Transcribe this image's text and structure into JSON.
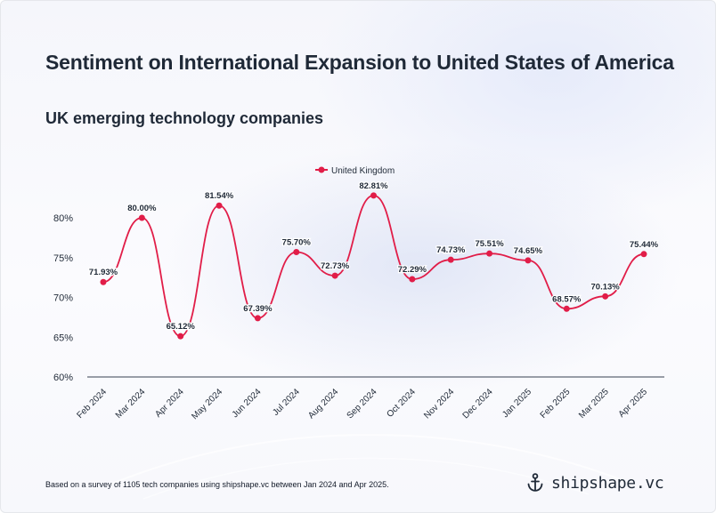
{
  "title": "Sentiment on International Expansion to United States of America",
  "subtitle": "UK emerging technology companies",
  "footnote": "Based on a survey of 1105 tech companies using shipshape.vc between Jan 2024 and Apr 2025.",
  "brand": {
    "name": "shipshape.vc",
    "icon": "anchor-icon"
  },
  "colors": {
    "series": "#e11d48",
    "axis": "#374151",
    "text": "#1f2937"
  },
  "chart_data": {
    "type": "line",
    "title": "Sentiment on International Expansion to United States of America",
    "subtitle": "UK emerging technology companies",
    "categories": [
      "Feb 2024",
      "Mar 2024",
      "Apr 2024",
      "May 2024",
      "Jun 2024",
      "Jul 2024",
      "Aug 2024",
      "Sep 2024",
      "Oct 2024",
      "Nov 2024",
      "Dec 2024",
      "Jan 2025",
      "Feb 2025",
      "Mar 2025",
      "Apr 2025"
    ],
    "series": [
      {
        "name": "United Kingdom",
        "values": [
          71.93,
          80.0,
          65.12,
          81.54,
          67.39,
          75.7,
          72.73,
          82.81,
          72.29,
          74.73,
          75.51,
          74.65,
          68.57,
          70.13,
          75.44
        ],
        "labels": [
          "71.93%",
          "80.00%",
          "65.12%",
          "81.54%",
          "67.39%",
          "75.70%",
          "72.73%",
          "82.81%",
          "72.29%",
          "74.73%",
          "75.51%",
          "74.65%",
          "68.57%",
          "70.13%",
          "75.44%"
        ]
      }
    ],
    "yticks": [
      {
        "value": 60,
        "label": "60%"
      },
      {
        "value": 65,
        "label": "65%"
      },
      {
        "value": 70,
        "label": "70%"
      },
      {
        "value": 75,
        "label": "75%"
      },
      {
        "value": 80,
        "label": "80%"
      }
    ],
    "ylim": [
      60,
      84
    ],
    "xlabel": "",
    "ylabel": "",
    "legend": "top-center",
    "grid": false,
    "curve": "smooth"
  }
}
